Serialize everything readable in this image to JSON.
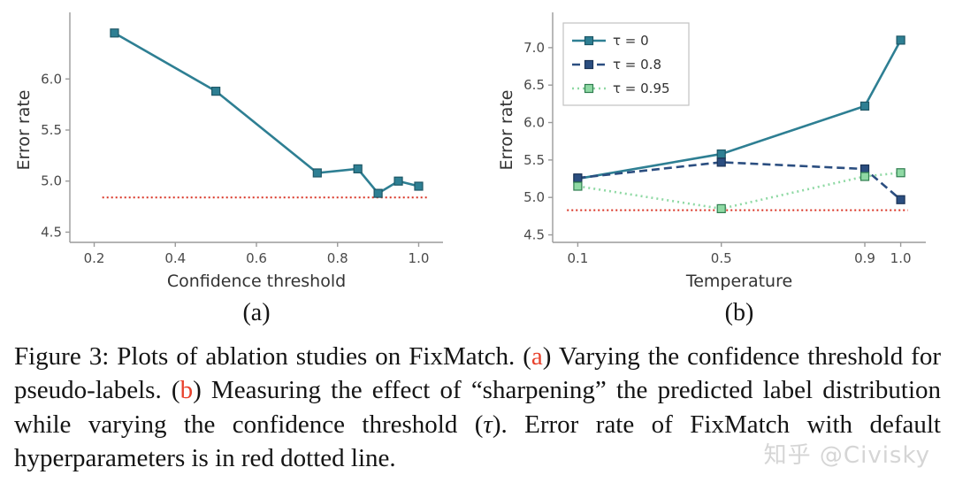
{
  "colors": {
    "caption_red": "#e8412c",
    "baseline_red": "#d93425",
    "spine": "#9b9b9b",
    "tick_label": "#4a4a4a",
    "axis_label": "#333333",
    "legend_border": "#c2c2c2",
    "watermark_gray": "#c8c8c8"
  },
  "figure": {
    "subplot_labels": [
      "(a)",
      "(b)"
    ]
  },
  "chart_data": [
    {
      "id": "a",
      "type": "line",
      "title": "",
      "xlabel": "Confidence threshold",
      "ylabel": "Error rate",
      "xlim": [
        0.14,
        1.06
      ],
      "ylim": [
        4.4,
        6.6
      ],
      "xticks": [
        "0.2",
        "0.4",
        "0.6",
        "0.8",
        "1.0"
      ],
      "yticks": [
        "4.5",
        "5.0",
        "5.5",
        "6.0"
      ],
      "grid": false,
      "legend": false,
      "baseline": {
        "y": 4.84,
        "color": "#d93425",
        "style": "dotted",
        "meaning": "FixMatch default hyperparameters error rate"
      },
      "series": [
        {
          "name": "error rate vs confidence threshold",
          "color": "#2e7f93",
          "edge": "#1d5766",
          "style": "solid",
          "marker": "square",
          "x": [
            0.25,
            0.5,
            0.75,
            0.85,
            0.9,
            0.95,
            1.0
          ],
          "y": [
            6.45,
            5.88,
            5.08,
            5.12,
            4.88,
            5.0,
            4.95
          ]
        }
      ]
    },
    {
      "id": "b",
      "type": "line",
      "title": "",
      "xlabel": "Temperature",
      "ylabel": "Error rate",
      "xlim": [
        0.03,
        1.07
      ],
      "ylim": [
        4.4,
        7.4
      ],
      "xticks": [
        "0.1",
        "0.5",
        "0.9",
        "1.0"
      ],
      "yticks": [
        "4.5",
        "5.0",
        "5.5",
        "6.0",
        "6.5",
        "7.0"
      ],
      "grid": false,
      "legend": {
        "position": "upper-left"
      },
      "baseline": {
        "y": 4.83,
        "color": "#d93425",
        "style": "dotted",
        "meaning": "FixMatch default hyperparameters error rate"
      },
      "series": [
        {
          "name": "τ = 0",
          "color": "#2e7f93",
          "edge": "#1d5766",
          "style": "solid",
          "marker": "square",
          "x": [
            0.1,
            0.5,
            0.9,
            1.0
          ],
          "y": [
            5.25,
            5.58,
            6.22,
            7.1
          ]
        },
        {
          "name": "τ = 0.8",
          "color": "#2b4e80",
          "edge": "#1b3356",
          "style": "dashed",
          "marker": "square",
          "x": [
            0.1,
            0.5,
            0.9,
            1.0
          ],
          "y": [
            5.26,
            5.47,
            5.38,
            4.97
          ]
        },
        {
          "name": "τ = 0.95",
          "color": "#8fd9a4",
          "edge": "#2f7d4f",
          "style": "dotted",
          "marker": "square",
          "x": [
            0.1,
            0.5,
            0.9,
            1.0
          ],
          "y": [
            5.15,
            4.85,
            5.28,
            5.33
          ]
        }
      ]
    }
  ],
  "caption": {
    "parts": [
      {
        "t": "Figure 3: Plots of ablation studies on FixMatch. ("
      },
      {
        "t": "a",
        "red": true
      },
      {
        "t": ") Varying the confidence threshold for pseudo-labels. ("
      },
      {
        "t": "b",
        "red": true
      },
      {
        "t": ") Measuring the effect of “sharpening” the predicted label distribution while varying the confidence threshold ("
      },
      {
        "t": "τ",
        "italic": true
      },
      {
        "t": "). Error rate of FixMatch with default hyperparameters is in red dotted line."
      }
    ]
  },
  "watermark": {
    "text": "知乎 @Civisky"
  }
}
